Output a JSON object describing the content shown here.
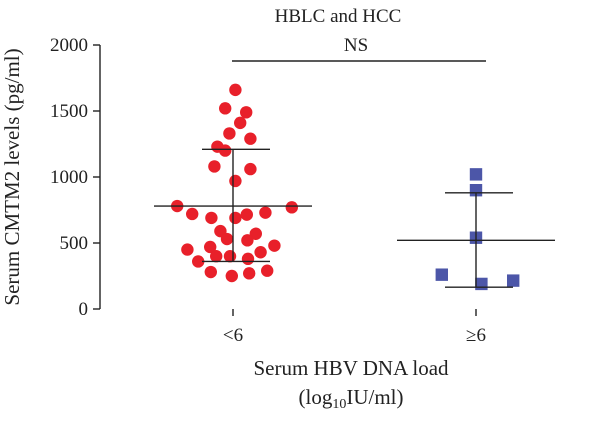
{
  "chart_data": {
    "type": "scatter",
    "title": "HBLC and HCC",
    "ylabel": "Serum CMTM2 levels (pg/ml)",
    "xlabel_line1": "Serum HBV DNA load",
    "xlabel_line2_pre": "(log",
    "xlabel_line2_sub": "10",
    "xlabel_line2_post": "IU/ml)",
    "ylim": [
      0,
      2000
    ],
    "yticks": [
      "0",
      "500",
      "1000",
      "1500",
      "2000"
    ],
    "categories": [
      "<6",
      "≥6"
    ],
    "significance_label": "NS",
    "series": [
      {
        "category": "<6",
        "color": "#e8202a",
        "marker": "circle",
        "mean": 780,
        "sd_low": 360,
        "sd_high": 1210,
        "points": [
          {
            "dx": 0.04,
            "y": 1660
          },
          {
            "dx": -0.13,
            "y": 1520
          },
          {
            "dx": 0.22,
            "y": 1490
          },
          {
            "dx": 0.12,
            "y": 1410
          },
          {
            "dx": -0.06,
            "y": 1330
          },
          {
            "dx": 0.29,
            "y": 1290
          },
          {
            "dx": -0.26,
            "y": 1230
          },
          {
            "dx": -0.13,
            "y": 1200
          },
          {
            "dx": -0.31,
            "y": 1080
          },
          {
            "dx": 0.29,
            "y": 1060
          },
          {
            "dx": 0.04,
            "y": 970
          },
          {
            "dx": -0.93,
            "y": 780
          },
          {
            "dx": 0.98,
            "y": 770
          },
          {
            "dx": 0.54,
            "y": 730
          },
          {
            "dx": -0.68,
            "y": 720
          },
          {
            "dx": 0.23,
            "y": 715
          },
          {
            "dx": -0.36,
            "y": 690
          },
          {
            "dx": 0.04,
            "y": 690
          },
          {
            "dx": -0.21,
            "y": 590
          },
          {
            "dx": 0.38,
            "y": 570
          },
          {
            "dx": -0.1,
            "y": 530
          },
          {
            "dx": 0.24,
            "y": 520
          },
          {
            "dx": 0.69,
            "y": 480
          },
          {
            "dx": -0.38,
            "y": 470
          },
          {
            "dx": -0.76,
            "y": 450
          },
          {
            "dx": 0.46,
            "y": 430
          },
          {
            "dx": -0.05,
            "y": 400
          },
          {
            "dx": -0.28,
            "y": 400
          },
          {
            "dx": 0.25,
            "y": 380
          },
          {
            "dx": -0.58,
            "y": 360
          },
          {
            "dx": 0.57,
            "y": 290
          },
          {
            "dx": -0.37,
            "y": 280
          },
          {
            "dx": 0.27,
            "y": 270
          },
          {
            "dx": -0.02,
            "y": 250
          }
        ]
      },
      {
        "category": "≥6",
        "color": "#4c56a8",
        "marker": "square",
        "mean": 520,
        "sd_low": 165,
        "sd_high": 880,
        "points": [
          {
            "dx": 0.0,
            "y": 1020
          },
          {
            "dx": 0.0,
            "y": 900
          },
          {
            "dx": 0.0,
            "y": 540
          },
          {
            "dx": -0.57,
            "y": 260
          },
          {
            "dx": 0.62,
            "y": 215
          },
          {
            "dx": 0.09,
            "y": 190
          }
        ]
      }
    ]
  }
}
